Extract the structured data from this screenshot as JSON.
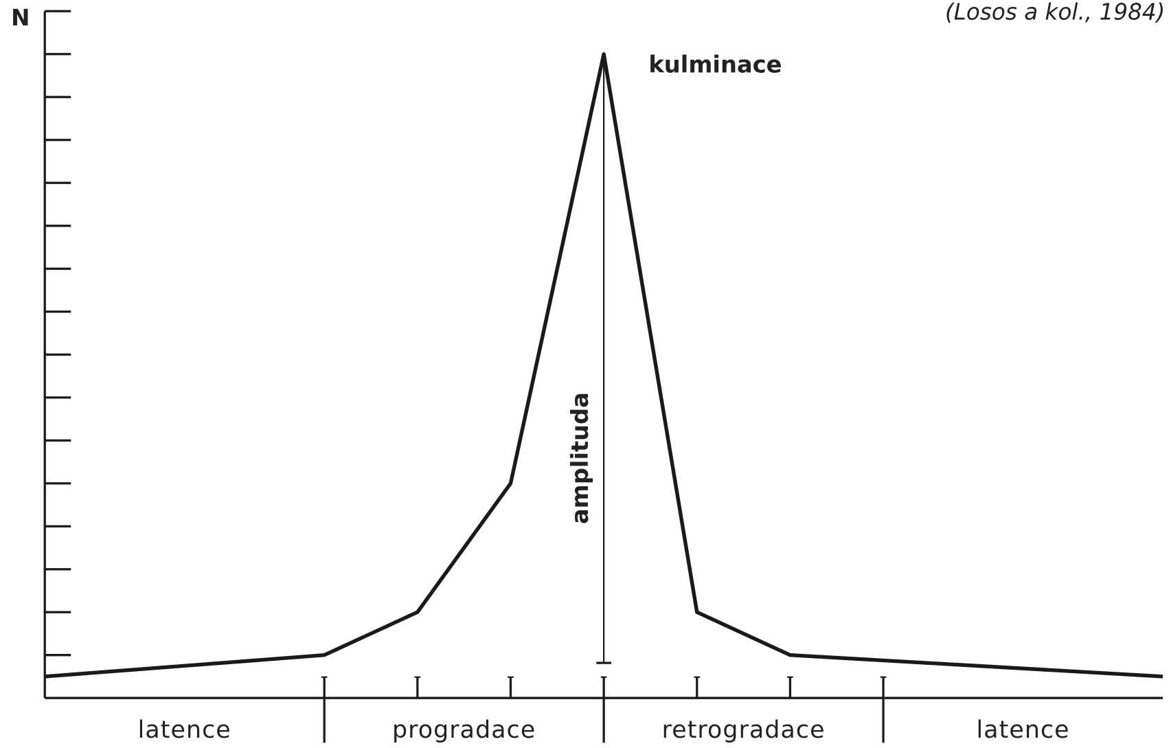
{
  "chart_data": {
    "type": "line",
    "ylabel": "N",
    "source": "(Losos a kol., 1984)",
    "x": [
      0,
      3,
      4,
      5,
      6,
      7,
      8,
      12
    ],
    "series": [
      {
        "color": "#1a1a1a",
        "values": [
          0.5,
          1,
          2,
          5,
          15,
          2,
          1,
          0.5
        ]
      }
    ],
    "xlim": [
      0,
      12
    ],
    "xticks": [
      3,
      4,
      5,
      6,
      7,
      8,
      9
    ],
    "ylim": [
      0,
      16
    ],
    "yticks": [
      1,
      2,
      3,
      4,
      5,
      6,
      7,
      8,
      9,
      10,
      11,
      12,
      13,
      14,
      15,
      16
    ],
    "phases": [
      {
        "label": "latence",
        "start": 0,
        "end": 3
      },
      {
        "label": "progradace",
        "start": 3,
        "end": 6
      },
      {
        "label": "retrogradace",
        "start": 6,
        "end": 9
      },
      {
        "label": "latence",
        "start": 9,
        "end": 12
      }
    ],
    "annotations": [
      {
        "text": "kulminace",
        "x": 6,
        "y": 15
      },
      {
        "text": "amplituda",
        "x": 6,
        "y": 15
      }
    ]
  }
}
